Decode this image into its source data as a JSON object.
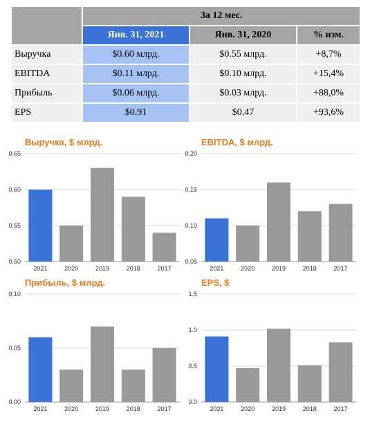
{
  "table": {
    "group_header": "За 12 мес.",
    "columns": [
      "Янв. 31, 2021",
      "Янв. 31, 2020",
      "% изм."
    ],
    "rows": [
      {
        "label": "Выручка",
        "cur": "$0.60 млрд.",
        "prev": "$0.55 млрд.",
        "chg": "+8,7%"
      },
      {
        "label": "EBITDA",
        "cur": "$0.11 млрд.",
        "prev": "$0.10 млрд.",
        "chg": "+15,4%"
      },
      {
        "label": "Прибыль",
        "cur": "$0.06 млрд.",
        "prev": "$0.03 млрд.",
        "chg": "+88,0%"
      },
      {
        "label": "EPS",
        "cur": "$0.91",
        "prev": "$0.47",
        "chg": "+93,6%"
      }
    ]
  },
  "colors": {
    "highlight": "#3a72d8",
    "bar": "#999999",
    "title": "#e87a1f"
  },
  "chart_data": [
    {
      "type": "bar",
      "title": "Выручка, $ млрд.",
      "categories": [
        "2021",
        "2020",
        "2019",
        "2018",
        "2017"
      ],
      "values": [
        0.6,
        0.55,
        0.63,
        0.59,
        0.54
      ],
      "ylim": [
        0.5,
        0.65
      ],
      "yticks": [
        "0.50",
        "0.55",
        "0.60",
        "0.65"
      ],
      "grid": true
    },
    {
      "type": "bar",
      "title": "EBITDA, $ млрд.",
      "categories": [
        "2021",
        "2020",
        "2019",
        "2018",
        "2017"
      ],
      "values": [
        0.11,
        0.1,
        0.16,
        0.12,
        0.13
      ],
      "ylim": [
        0.05,
        0.2
      ],
      "yticks": [
        "0.05",
        "0.10",
        "0.15",
        "0.20"
      ],
      "grid": true
    },
    {
      "type": "bar",
      "title": "Прибыль, $ млрд.",
      "categories": [
        "2021",
        "2020",
        "2019",
        "2018",
        "2017"
      ],
      "values": [
        0.06,
        0.03,
        0.07,
        0.03,
        0.05
      ],
      "ylim": [
        0.0,
        0.1
      ],
      "yticks": [
        "0.00",
        "0.05",
        "0.10"
      ],
      "grid": true
    },
    {
      "type": "bar",
      "title": "EPS, $",
      "categories": [
        "2021",
        "2020",
        "2019",
        "2018",
        "2017"
      ],
      "values": [
        0.91,
        0.47,
        1.02,
        0.51,
        0.83
      ],
      "ylim": [
        0.0,
        1.5
      ],
      "yticks": [
        "0.0",
        "0.5",
        "1.0",
        "1.5"
      ],
      "grid": true
    }
  ]
}
